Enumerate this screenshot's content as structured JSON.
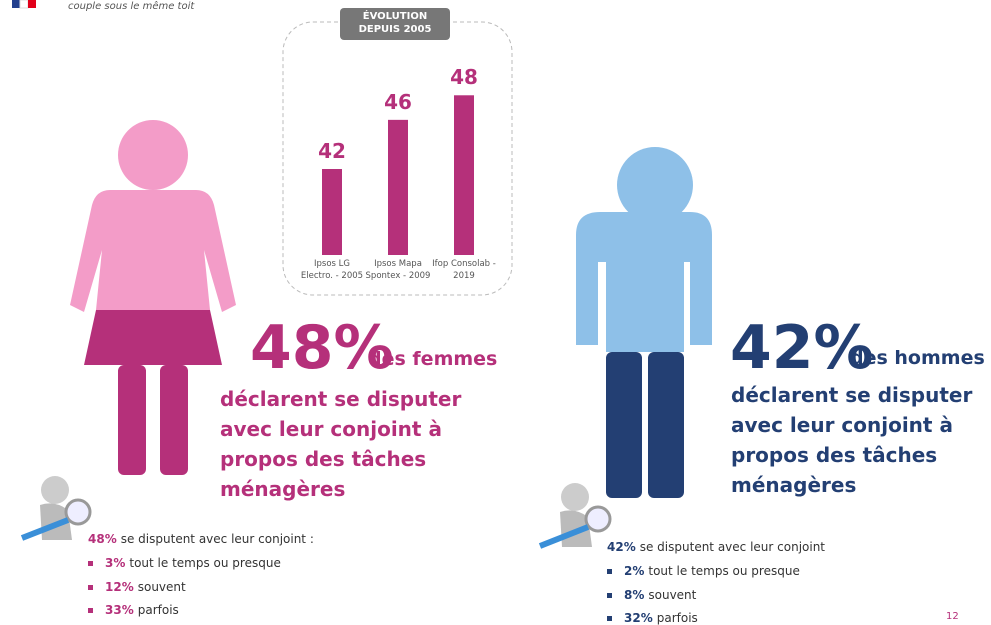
{
  "header": {
    "subtitle": "couple sous le même toit"
  },
  "chart_data": {
    "type": "bar",
    "title": "ÉVOLUTION DEPUIS 2005",
    "categories": [
      "Ipsos LG Electro. - 2005",
      "Ipsos Mapa Spontex - 2009",
      "Ifop Consolab - 2019"
    ],
    "values": [
      42,
      46,
      48
    ],
    "color": "#b5307a",
    "ylim": [
      35,
      49
    ]
  },
  "women": {
    "headline": "48%",
    "group": "des femmes",
    "statement": "déclarent se disputer avec leur conjoint à propos des tâches ménagères",
    "detail": {
      "value": "48%",
      "text": "se disputent avec leur conjoint :"
    },
    "items": [
      {
        "value": "3%",
        "text": "tout le temps ou presque"
      },
      {
        "value": "12%",
        "text": "souvent"
      },
      {
        "value": "33%",
        "text": "parfois"
      }
    ]
  },
  "men": {
    "headline": "42%",
    "group": "des hommes",
    "statement": "déclarent se disputer avec leur conjoint à propos des tâches ménagères",
    "detail": {
      "value": "42%",
      "text": "se disputent avec leur conjoint"
    },
    "items": [
      {
        "value": "2%",
        "text": "tout le temps ou presque"
      },
      {
        "value": "8%",
        "text": "souvent"
      },
      {
        "value": "32%",
        "text": "parfois"
      }
    ]
  },
  "page_number": "12"
}
